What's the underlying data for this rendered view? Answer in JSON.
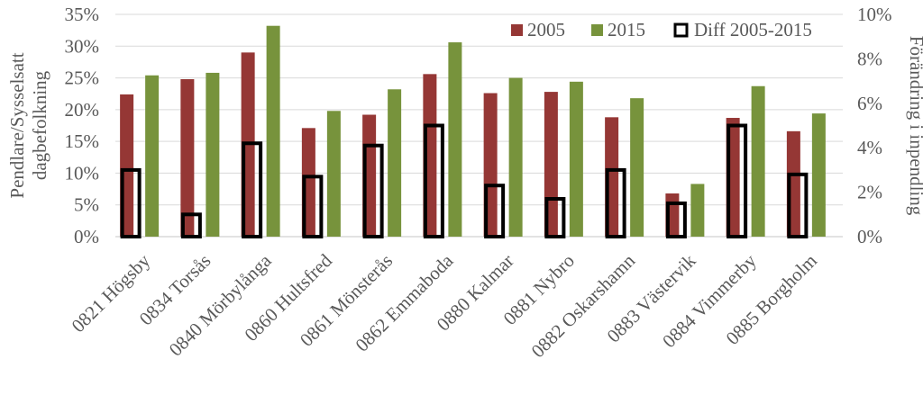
{
  "chart_data": {
    "type": "bar",
    "categories": [
      "0821 Högsby",
      "0834 Torsås",
      "0840 Mörbylånga",
      "0860 Hultsfred",
      "0861 Mönsterås",
      "0862 Emmaboda",
      "0880 Kalmar",
      "0881 Nybro",
      "0882 Oskarshamn",
      "0883 Västervik",
      "0884 Vimmerby",
      "0885 Borgholm"
    ],
    "series": [
      {
        "name": "2005",
        "axis": "left",
        "color": "#953735",
        "values": [
          22.4,
          24.8,
          29.0,
          17.1,
          19.2,
          25.6,
          22.6,
          22.8,
          18.8,
          6.8,
          18.7,
          16.6
        ]
      },
      {
        "name": "2015",
        "axis": "left",
        "color": "#77933C",
        "values": [
          25.4,
          25.8,
          33.2,
          19.8,
          23.2,
          30.6,
          25.0,
          24.4,
          21.8,
          8.3,
          23.7,
          19.4
        ]
      },
      {
        "name": "Diff 2005-2015",
        "axis": "right",
        "color": "#000000",
        "style": "hollow",
        "values": [
          3.0,
          1.0,
          4.2,
          2.7,
          4.1,
          5.0,
          2.3,
          1.7,
          3.0,
          1.5,
          5.0,
          2.8
        ]
      }
    ],
    "y_left": {
      "label": "Pendlare/Sysselsatt dagbefolkning",
      "label_lines": [
        "Pendlare/Sysselsatt",
        "dagbefolkning"
      ],
      "ylim": [
        0,
        35
      ],
      "ticks": [
        "0%",
        "5%",
        "10%",
        "15%",
        "20%",
        "25%",
        "30%",
        "35%"
      ]
    },
    "y_right": {
      "label": "Förändring i inpendling",
      "ylim": [
        0,
        10
      ],
      "ticks": [
        "0%",
        "2%",
        "4%",
        "6%",
        "8%",
        "10%"
      ]
    },
    "grid": true,
    "legend": {
      "position": "top-right",
      "items": [
        "2005",
        "2015",
        "Diff 2005-2015"
      ]
    }
  }
}
